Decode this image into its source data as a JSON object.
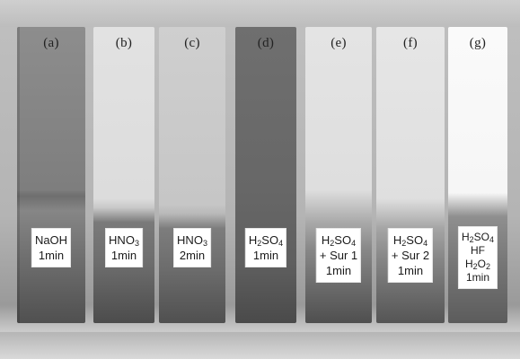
{
  "slides": [
    {
      "id": "a",
      "label": "(a)",
      "tag_lines": [
        "NaOH",
        "1min"
      ]
    },
    {
      "id": "b",
      "label": "(b)",
      "tag_lines": [
        "HNO",
        "1min"
      ]
    },
    {
      "id": "c",
      "label": "(c)",
      "tag_lines": [
        "HNO",
        "2min"
      ]
    },
    {
      "id": "d",
      "label": "(d)",
      "tag_lines": [
        "H SO",
        "1min"
      ]
    },
    {
      "id": "e",
      "label": "(e)",
      "tag_lines": [
        "H SO",
        "+ Sur 1",
        "1min"
      ]
    },
    {
      "id": "f",
      "label": "(f)",
      "tag_lines": [
        "H SO",
        "+ Sur 2",
        "1min"
      ]
    },
    {
      "id": "g",
      "label": "(g)",
      "tag_lines": [
        "H SO",
        "HF",
        "H O",
        "1min"
      ]
    }
  ],
  "formulas": {
    "hno3": {
      "base": "HNO",
      "sub": "3"
    },
    "h2so4": {
      "h": "H",
      "h_sub": "2",
      "so": "SO",
      "so_sub": "4"
    },
    "h2o2": {
      "h": "H",
      "h_sub": "2",
      "o": "O",
      "o_sub": "2"
    }
  },
  "text": {
    "a_l1": "NaOH",
    "a_l2": "1min",
    "b_l2": "1min",
    "c_l2": "2min",
    "d_l2": "1min",
    "e_l2": "+ Sur 1",
    "e_l3": "1min",
    "f_l2": "+ Sur 2",
    "f_l3": "1min",
    "g_l2": "HF",
    "g_l4": "1min"
  }
}
